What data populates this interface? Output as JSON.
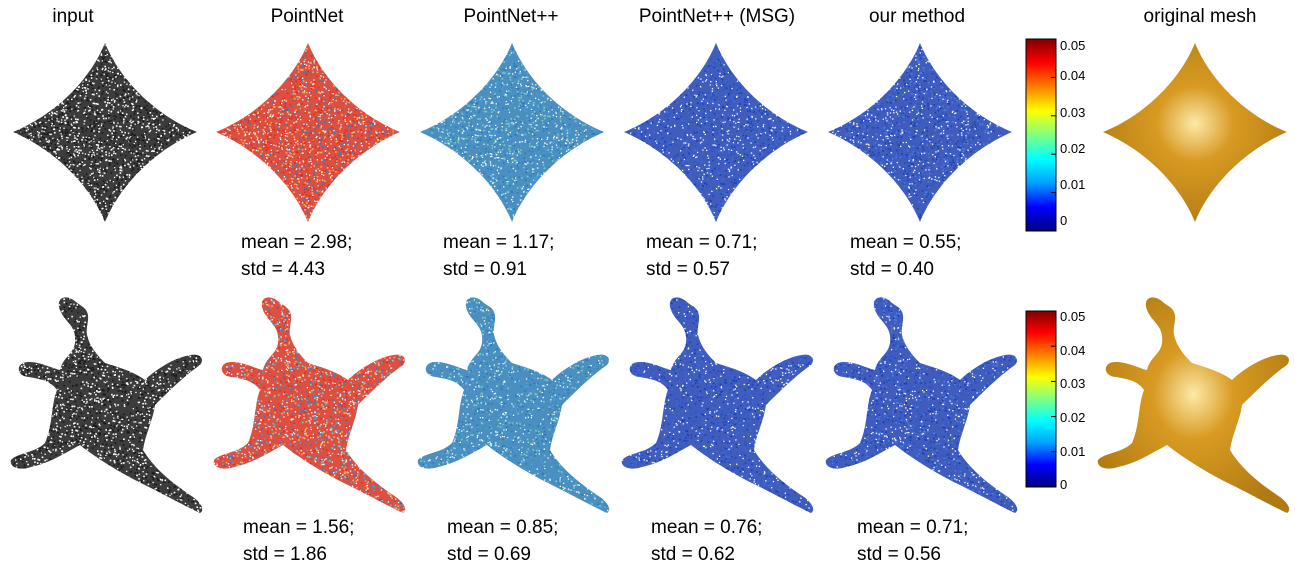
{
  "headers": [
    "input",
    "PointNet",
    "PointNet++",
    "PointNet++ (MSG)",
    "our method",
    "original mesh"
  ],
  "colorbar": {
    "ticks": [
      "0.05",
      "0.04",
      "0.03",
      "0.02",
      "0.01",
      "0"
    ],
    "colormap": [
      "#000080",
      "#0000ff",
      "#00a0ff",
      "#00ffff",
      "#80ff80",
      "#ffff00",
      "#ff8000",
      "#ff0000",
      "#800000"
    ]
  },
  "rows": [
    {
      "shape": "diamond",
      "stats": [
        {
          "mean": "mean = 2.98;",
          "std": "std = 4.43"
        },
        {
          "mean": "mean = 1.17;",
          "std": "std = 0.91"
        },
        {
          "mean": "mean = 0.71;",
          "std": "std = 0.57"
        },
        {
          "mean": "mean = 0.55;",
          "std": "std = 0.40"
        }
      ]
    },
    {
      "shape": "creature",
      "stats": [
        {
          "mean": "mean = 1.56;",
          "std": "std = 1.86"
        },
        {
          "mean": "mean = 0.85;",
          "std": "std = 0.69"
        },
        {
          "mean": "mean = 0.76;",
          "std": "std = 0.62"
        },
        {
          "mean": "mean = 0.71;",
          "std": "std = 0.56"
        }
      ]
    }
  ],
  "styles": {
    "input": "#1a1a1a",
    "pointnet": [
      "#d7301f",
      "#fdae61",
      "#4575b4"
    ],
    "pointnetpp": [
      "#2c7bb6",
      "#4a9fd8",
      "#80cdc1"
    ],
    "msg": [
      "#1f3fb0",
      "#2a55c9",
      "#3c6fd6"
    ],
    "ours": [
      "#1f3fb0",
      "#2a55c9",
      "#4a7fdf"
    ],
    "mesh": "#d89a22"
  }
}
